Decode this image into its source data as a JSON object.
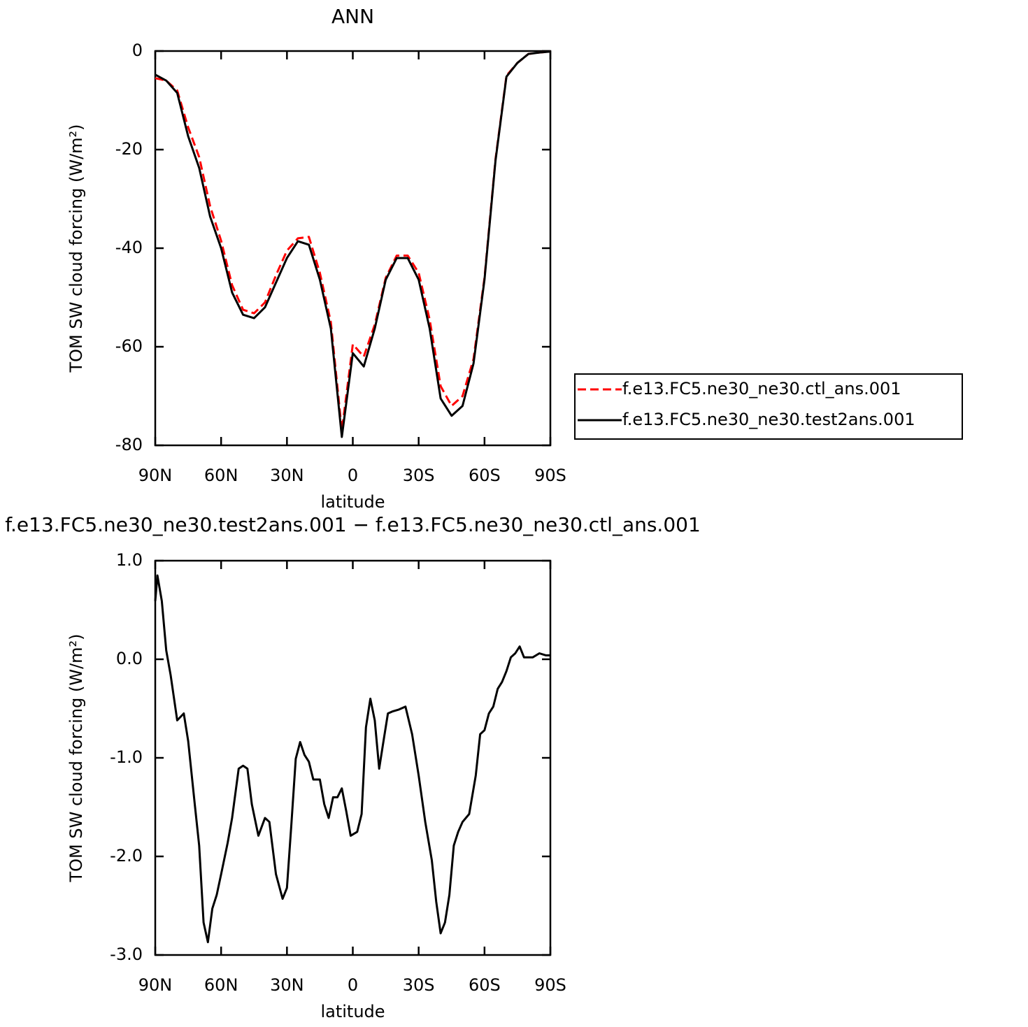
{
  "chart_data": [
    {
      "type": "line",
      "title": "ANN",
      "xlabel": "latitude",
      "ylabel": "TOM SW cloud forcing (W/m²)",
      "x": [
        90,
        85,
        80,
        75,
        70,
        65,
        60,
        55,
        50,
        45,
        40,
        35,
        30,
        25,
        20,
        15,
        10,
        5,
        0,
        -5,
        -10,
        -15,
        -20,
        -25,
        -30,
        -35,
        -40,
        -45,
        -50,
        -55,
        -60,
        -65,
        -70,
        -75,
        -80,
        -85,
        -90
      ],
      "series": [
        {
          "name": "f.e13.FC5.ne30_ne30.ctl_ans.001",
          "color": "#ff0000",
          "dash": true,
          "values": [
            -5.5,
            -6,
            -8,
            -15.5,
            -21.5,
            -31.5,
            -38.5,
            -47.5,
            -52.5,
            -53.2,
            -51,
            -45.5,
            -40.5,
            -38,
            -37.7,
            -45,
            -55,
            -77,
            -59.5,
            -62,
            -55.5,
            -46,
            -41.5,
            -41.5,
            -45,
            -54.5,
            -68,
            -72,
            -70,
            -62.5,
            -46,
            -22,
            -5,
            -2.4,
            -0.6,
            -0.3,
            -0.1
          ]
        },
        {
          "name": "f.e13.FC5.ne30_ne30.test2ans.001",
          "color": "#000000",
          "dash": false,
          "values": [
            -4.8,
            -6,
            -8.5,
            -17.3,
            -23.7,
            -33.6,
            -40,
            -49,
            -53.5,
            -54.2,
            -52,
            -47,
            -42,
            -38.6,
            -39.3,
            -46.4,
            -56.3,
            -78.3,
            -61.3,
            -64,
            -56.3,
            -46.4,
            -42,
            -42,
            -46.4,
            -56.3,
            -70.5,
            -74,
            -72,
            -63.4,
            -46.4,
            -22.3,
            -5.2,
            -2.4,
            -0.6,
            -0.3,
            -0.1
          ]
        }
      ],
      "xlim": [
        90,
        -90
      ],
      "xticks": [
        {
          "value": 90,
          "label": "90N"
        },
        {
          "value": 60,
          "label": "60N"
        },
        {
          "value": 30,
          "label": "30N"
        },
        0,
        {
          "value": -30,
          "label": "30S"
        },
        {
          "value": -60,
          "label": "60S"
        },
        {
          "value": -90,
          "label": "90S"
        }
      ],
      "ylim": [
        -80,
        0
      ],
      "yticks": [
        0,
        -20,
        -40,
        -60,
        -80
      ],
      "legend": "right"
    },
    {
      "type": "line",
      "title": "f.e13.FC5.ne30_ne30.test2ans.001 − f.e13.FC5.ne30_ne30.ctl_ans.001",
      "xlabel": "latitude",
      "ylabel": "TOM SW cloud forcing (W/m²)",
      "x": [
        90,
        89,
        87,
        85,
        83,
        80,
        77,
        75,
        72,
        70,
        68,
        66,
        64,
        62,
        60,
        57,
        55,
        52,
        50,
        48,
        46,
        43,
        40,
        38,
        35,
        32,
        30,
        28,
        26,
        24,
        22,
        20,
        18,
        15,
        13,
        11,
        9,
        7,
        5,
        3,
        1,
        -2,
        -4,
        -6,
        -8,
        -10,
        -12,
        -14,
        -16,
        -18,
        -21,
        -24,
        -27,
        -30,
        -33,
        -36,
        -38,
        -40,
        -42,
        -44,
        -46,
        -48,
        -50,
        -53,
        -56,
        -58,
        -60,
        -62,
        -64,
        -66,
        -68,
        -70,
        -72,
        -74,
        -76,
        -78,
        -82,
        -85,
        -88,
        -90
      ],
      "series": [
        {
          "color": "#000000",
          "dash": false,
          "values": [
            0.59,
            0.85,
            0.59,
            0.09,
            -0.16,
            -0.62,
            -0.55,
            -0.83,
            -1.47,
            -1.89,
            -2.67,
            -2.87,
            -2.53,
            -2.39,
            -2.18,
            -1.86,
            -1.61,
            -1.11,
            -1.08,
            -1.11,
            -1.47,
            -1.79,
            -1.61,
            -1.65,
            -2.18,
            -2.43,
            -2.32,
            -1.68,
            -1.01,
            -0.84,
            -0.97,
            -1.04,
            -1.22,
            -1.22,
            -1.47,
            -1.61,
            -1.4,
            -1.4,
            -1.31,
            -1.54,
            -1.79,
            -1.75,
            -1.57,
            -0.69,
            -0.4,
            -0.62,
            -1.11,
            -0.83,
            -0.55,
            -0.53,
            -0.51,
            -0.48,
            -0.76,
            -1.18,
            -1.65,
            -2.04,
            -2.46,
            -2.78,
            -2.67,
            -2.39,
            -1.89,
            -1.75,
            -1.65,
            -1.57,
            -1.18,
            -0.76,
            -0.72,
            -0.55,
            -0.48,
            -0.3,
            -0.23,
            -0.12,
            0.02,
            0.06,
            0.13,
            0.02,
            0.02,
            0.06,
            0.04,
            0.04
          ]
        }
      ],
      "xlim": [
        90,
        -90
      ],
      "xticks": [
        {
          "value": 90,
          "label": "90N"
        },
        {
          "value": 60,
          "label": "60N"
        },
        {
          "value": 30,
          "label": "30N"
        },
        0,
        {
          "value": -30,
          "label": "30S"
        },
        {
          "value": -60,
          "label": "60S"
        },
        {
          "value": -90,
          "label": "90S"
        }
      ],
      "ylim": [
        -3,
        1
      ],
      "yticks": [
        {
          "value": 1,
          "label": "1.0"
        },
        {
          "value": 0,
          "label": "0.0"
        },
        {
          "value": -1,
          "label": "-1.0"
        },
        {
          "value": -2,
          "label": "-2.0"
        },
        {
          "value": -3,
          "label": "-3.0"
        }
      ]
    }
  ]
}
